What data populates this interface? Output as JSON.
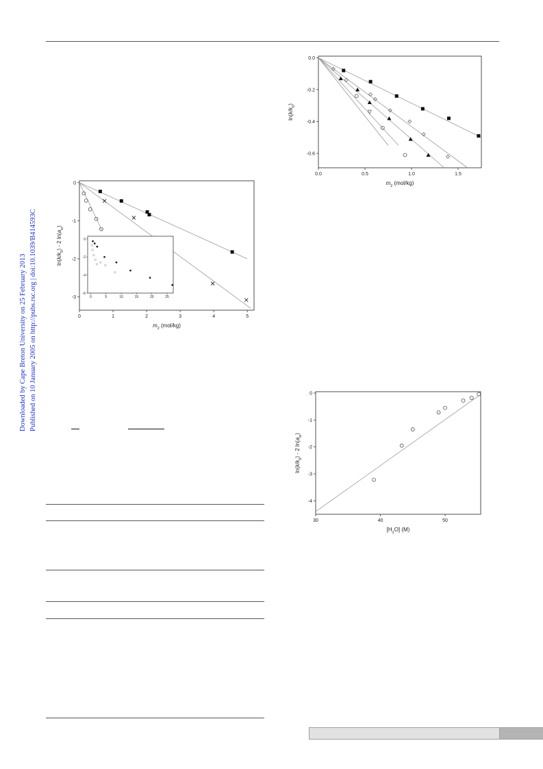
{
  "sidebar": {
    "download_note": "Downloaded by Cape Breton University on 25 February 2013",
    "published_note": "Published on 10 January 2005 on http://pubs.rsc.org | doi:10.1039/B414593C"
  },
  "colors": {
    "sidebar_text": "#1a2fd0",
    "marker": "#111111",
    "open_marker": "#555555",
    "fit_line": "#9a9a9a",
    "footer_bar": "#e2e2e2",
    "footer_tab": "#b4b4b4"
  },
  "chart_data": [
    {
      "type": "scatter",
      "xlabel": "m2 (mol/kg)",
      "ylabel": "ln(k/k0) - 2 ln(aw)",
      "xlim": [
        0,
        5.2
      ],
      "ylim": [
        -3.35,
        0.05
      ],
      "xticks": [
        "0",
        "1",
        "2",
        "3",
        "4",
        "5"
      ],
      "yticks": [
        "0",
        "-1",
        "-2",
        "-3"
      ],
      "grid": false,
      "series": [
        {
          "marker": "filled-square",
          "x": [
            0.62,
            1.25,
            2.02,
            2.08,
            4.55
          ],
          "y": [
            -0.23,
            -0.48,
            -0.77,
            -0.84,
            -1.82
          ],
          "fit_end": [
            5.0,
            -2.0
          ]
        },
        {
          "marker": "cross",
          "x": [
            0.75,
            1.62,
            2.63,
            3.97,
            4.97
          ],
          "y": [
            -0.48,
            -0.92,
            -1.65,
            -2.65,
            -3.08
          ],
          "fit_end": [
            5.1,
            -3.3
          ]
        },
        {
          "marker": "open-circle",
          "x": [
            0.13,
            0.2,
            0.32,
            0.5,
            0.65
          ],
          "y": [
            -0.28,
            -0.47,
            -0.7,
            -0.95,
            -1.22
          ],
          "fit_end": [
            0.68,
            -1.27
          ]
        }
      ],
      "inset": {
        "xlim": [
          -1,
          27
        ],
        "ylim": [
          -6,
          0.3
        ],
        "xticks": [
          "0",
          "5",
          "10",
          "15",
          "20",
          "25"
        ],
        "yticks": [
          "0",
          "-2",
          "-4",
          "-6"
        ],
        "series": [
          {
            "marker": "filled-square",
            "x": [
              0.7,
              1.3,
              2.1,
              4.5,
              8.4,
              13.0,
              19.4,
              26.7
            ],
            "y": [
              -0.25,
              -0.5,
              -0.85,
              -2.0,
              -2.6,
              -3.5,
              -4.3,
              -5.1
            ]
          },
          {
            "marker": "open-circle",
            "x": [
              0.4,
              0.6,
              1.0,
              1.5,
              2.0,
              3.2,
              4.8,
              7.9
            ],
            "y": [
              -0.7,
              -1.2,
              -1.8,
              -2.3,
              -2.8,
              -2.6,
              -2.9,
              -3.7
            ]
          }
        ]
      }
    },
    {
      "type": "scatter",
      "xlabel": "m2 (mol/kg)",
      "ylabel": "ln(k/k0)",
      "xlim": [
        0,
        1.75
      ],
      "ylim": [
        -0.69,
        0.01
      ],
      "xticks": [
        "0.0",
        "0.5",
        "1.0",
        "1.5"
      ],
      "yticks": [
        "0.0",
        "-0.2",
        "-0.4",
        "-0.6"
      ],
      "grid": false,
      "series": [
        {
          "marker": "filled-square",
          "x": [
            0.27,
            0.56,
            0.84,
            1.12,
            1.4,
            1.72
          ],
          "y": [
            -0.08,
            -0.15,
            -0.24,
            -0.32,
            -0.38,
            -0.49
          ],
          "fit_end": [
            1.75,
            -0.5
          ]
        },
        {
          "marker": "filled-triangle",
          "x": [
            0.24,
            0.42,
            0.55,
            0.76,
            0.99,
            1.18
          ],
          "y": [
            -0.13,
            -0.2,
            -0.28,
            -0.38,
            -0.51,
            -0.61
          ],
          "fit_end": [
            1.35,
            -0.69
          ]
        },
        {
          "marker": "open-diamond",
          "x": [
            0.16,
            0.3,
            0.56,
            0.61,
            0.77,
            0.98,
            1.13,
            1.39
          ],
          "y": [
            -0.07,
            -0.14,
            -0.23,
            -0.26,
            -0.33,
            -0.4,
            -0.48,
            -0.62
          ],
          "fit_end": [
            1.6,
            -0.69
          ]
        },
        {
          "marker": "open-circle",
          "x": [
            0.41,
            0.69,
            0.93
          ],
          "y": [
            -0.24,
            -0.44,
            -0.61
          ],
          "fit_end": [
            0.86,
            -0.55
          ]
        },
        {
          "marker": "open-triangle-down",
          "x": [
            0.55
          ],
          "y": [
            -0.34
          ],
          "fit_end": [
            0.75,
            -0.55
          ]
        }
      ]
    },
    {
      "type": "scatter",
      "xlabel": "[H2O] (M)",
      "ylabel": "ln(k/k0) - 2 ln(aw)",
      "xlim": [
        30,
        55.5
      ],
      "ylim": [
        -4.5,
        0.05
      ],
      "xticks": [
        "30",
        "40",
        "50"
      ],
      "yticks": [
        "0",
        "-1",
        "-2",
        "-3",
        "-4"
      ],
      "grid": false,
      "series": [
        {
          "marker": "open-circle",
          "x": [
            39.0,
            43.3,
            45.0,
            49.0,
            50.0,
            52.8,
            54.1,
            55.2
          ],
          "y": [
            -3.22,
            -1.95,
            -1.35,
            -0.72,
            -0.55,
            -0.28,
            -0.18,
            -0.04
          ],
          "fit_start": [
            30.0,
            -4.4
          ],
          "fit_end": [
            55.2,
            -0.1
          ]
        }
      ]
    }
  ]
}
